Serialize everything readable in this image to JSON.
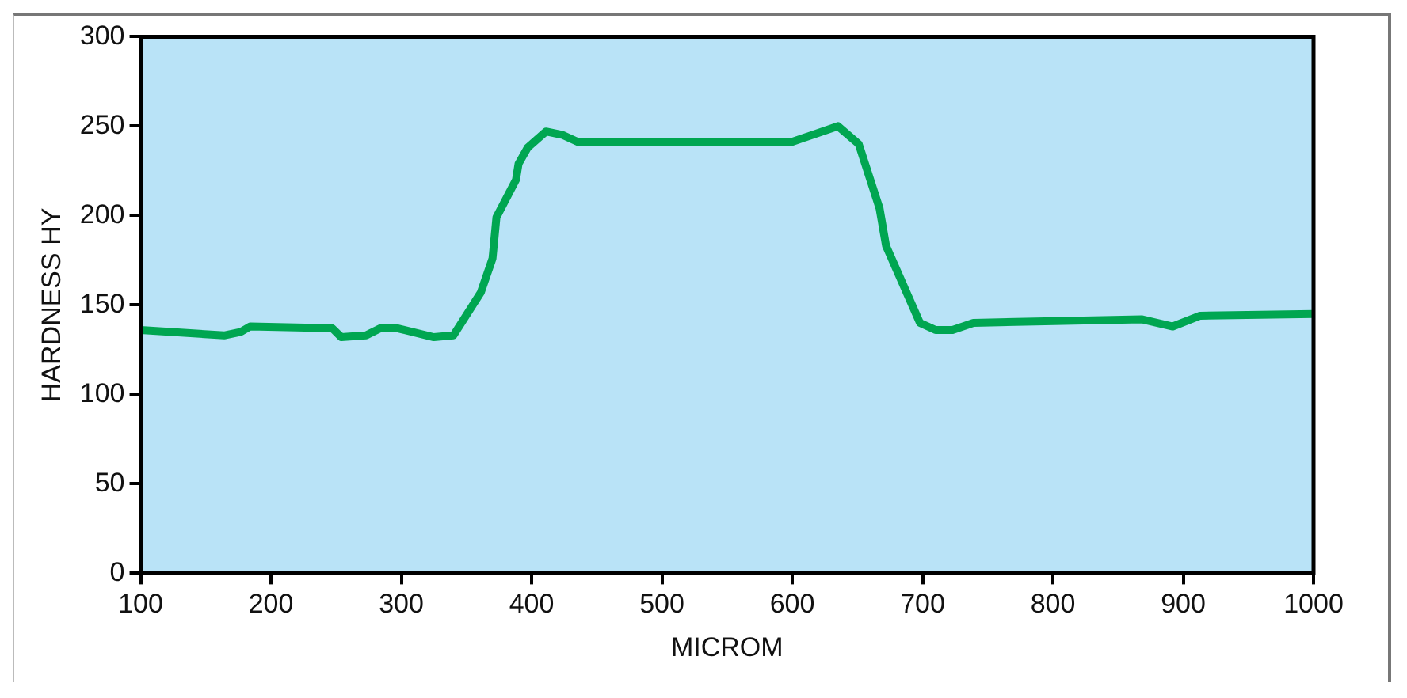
{
  "chart_data": {
    "type": "line",
    "xlabel": "MICROM",
    "ylabel": "HARDNESS HY",
    "x": [
      100,
      164,
      177,
      184,
      247,
      254,
      273,
      284,
      297,
      325,
      340,
      361,
      370,
      373,
      388,
      390,
      397,
      411,
      424,
      436,
      599,
      635,
      651,
      667,
      672,
      698,
      710,
      723,
      739,
      868,
      892,
      913,
      1000
    ],
    "series": [
      {
        "color": "#00a651",
        "values": [
          136,
          133,
          135,
          138,
          137,
          132,
          133,
          137,
          137,
          132,
          133,
          157,
          176,
          199,
          220,
          229,
          238,
          247,
          245,
          241,
          241,
          250,
          240,
          204,
          183,
          140,
          136,
          136,
          140,
          142,
          138,
          144,
          145
        ]
      }
    ],
    "xlim": [
      100,
      1000
    ],
    "xticks": [
      100,
      200,
      300,
      400,
      500,
      600,
      700,
      800,
      900,
      1000
    ],
    "ylim": [
      0,
      300
    ],
    "yticks": [
      0,
      50,
      100,
      150,
      200,
      250,
      300
    ],
    "marker": "none",
    "line_style": "solid",
    "legend": false
  }
}
